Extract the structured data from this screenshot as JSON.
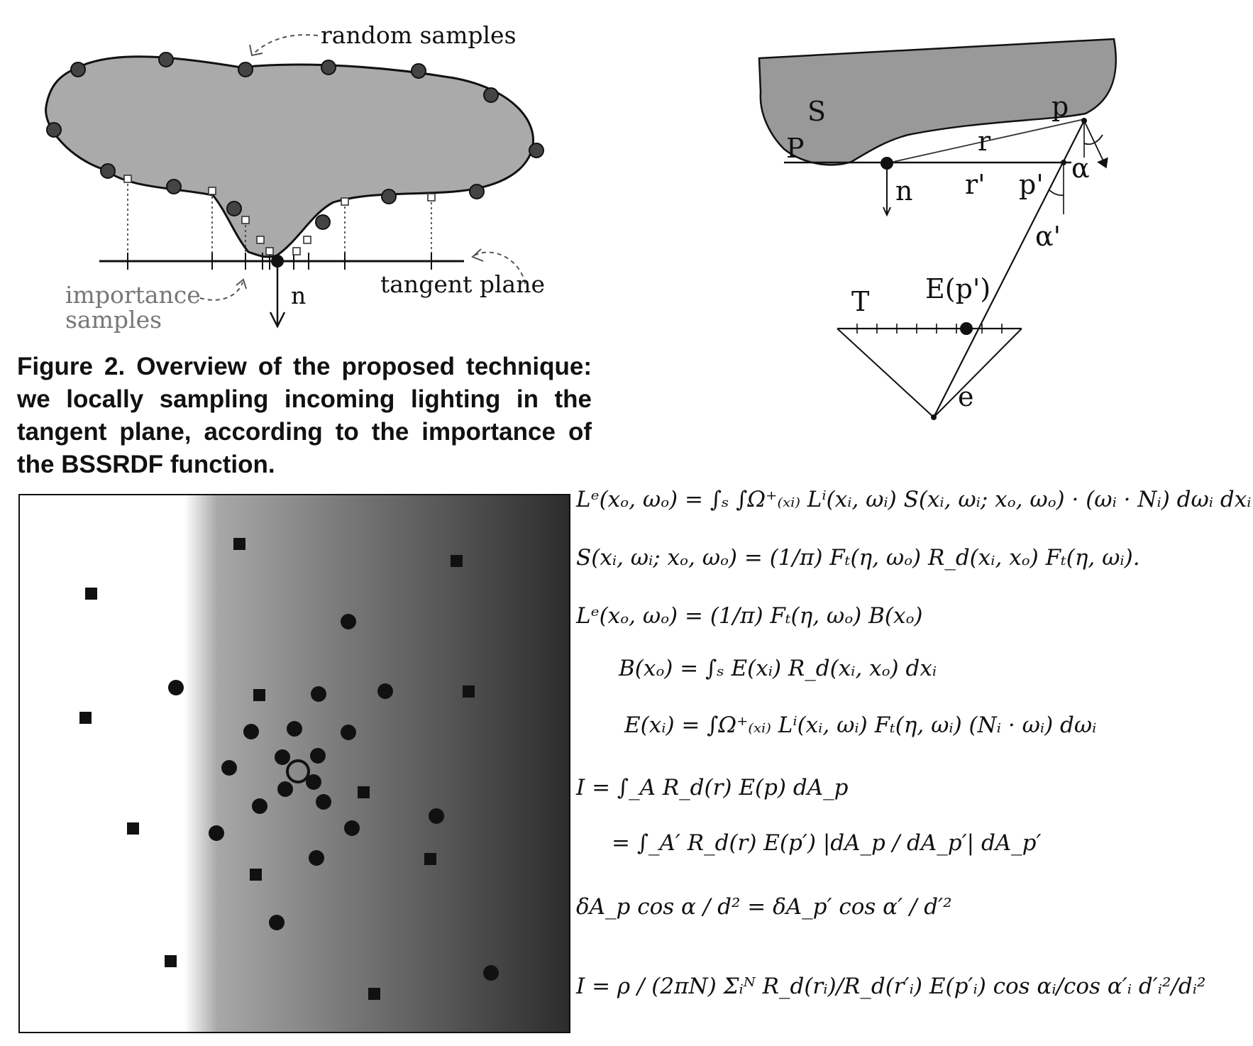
{
  "figure_top_left": {
    "labels": {
      "random_samples": "random samples",
      "tangent_plane": "tangent plane",
      "importance_line1": "importance",
      "importance_line2": "samples",
      "normal": "n"
    }
  },
  "caption": {
    "text": "Figure 2. Overview of the proposed technique: we locally sampling incoming lighting in the tangent plane, according to the importance of the BSSRDF function."
  },
  "figure_top_right": {
    "labels": {
      "S": "S",
      "p": "p",
      "P": "P",
      "r": "r",
      "n": "n",
      "r_prime": "r'",
      "p_prime": "p'",
      "alpha": "α",
      "alpha_prime": "α'",
      "E_p_prime": "E(p')",
      "T": "T",
      "e": "e"
    }
  },
  "figure_bottom_left": {
    "gradient": {
      "light": "#ffffff",
      "dark": "#2a2a2a"
    }
  },
  "equations": [
    "Lᵉ(xₒ, ωₒ)  =  ∫ₛ ∫Ω⁺₍ₓᵢ₎ Lⁱ(xᵢ, ωᵢ) S(xᵢ, ωᵢ; xₒ, ωₒ) · (ωᵢ · Nᵢ) dωᵢ dxᵢ",
    "S(xᵢ, ωᵢ; xₒ, ωₒ) = (1/π) Fₜ(η, ωₒ) R_d(xᵢ, xₒ) Fₜ(η, ωᵢ).",
    "Lᵉ(xₒ, ωₒ)  =  (1/π) Fₜ(η, ωₒ) B(xₒ)",
    "B(xₒ)  =  ∫ₛ E(xᵢ) R_d(xᵢ, xₒ) dxᵢ",
    "E(xᵢ)  =  ∫Ω⁺₍ₓᵢ₎ Lⁱ(xᵢ, ωᵢ) Fₜ(η, ωᵢ) (Nᵢ · ωᵢ) dωᵢ",
    "I  =  ∫_A R_d(r) E(p) dA_p",
    "=  ∫_A′ R_d(r) E(p′) |dA_p / dA_p′| dA_p′",
    "δA_p cos α / d²  =  δA_p′ cos α′ / d′²",
    "I = ρ / (2πN) Σᵢᴺ R_d(rᵢ)/R_d(r′ᵢ) E(p′ᵢ) cos αᵢ/cos α′ᵢ d′ᵢ²/dᵢ²"
  ]
}
